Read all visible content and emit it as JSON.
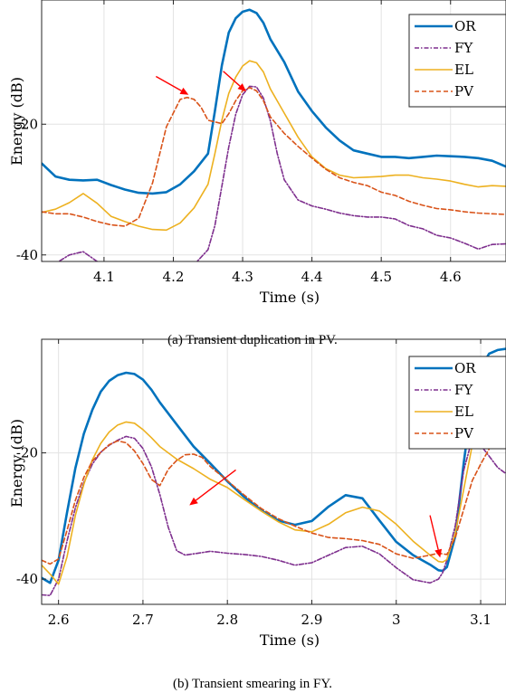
{
  "chart_data": [
    {
      "type": "line",
      "caption": "(a) Transient duplication in PV.",
      "xlabel": "Time (s)",
      "ylabel": "Energy (dB)",
      "xlim": [
        4.01,
        4.68
      ],
      "ylim": [
        -41,
        -1
      ],
      "xticks": [
        4.1,
        4.2,
        4.3,
        4.4,
        4.5,
        4.6
      ],
      "xtick_labels": [
        "4.1",
        "4.2",
        "4.3",
        "4.4",
        "4.5",
        "4.6"
      ],
      "yticks": [
        -40,
        -20
      ],
      "ytick_labels": [
        "-40",
        "-20"
      ],
      "grid": true,
      "legend_position": "top-right",
      "series": [
        {
          "name": "OR",
          "color": "#0072BD",
          "dash": "solid",
          "width": 2.6,
          "x": [
            4.01,
            4.03,
            4.05,
            4.07,
            4.09,
            4.11,
            4.13,
            4.15,
            4.17,
            4.19,
            4.21,
            4.23,
            4.25,
            4.26,
            4.27,
            4.28,
            4.29,
            4.3,
            4.31,
            4.32,
            4.33,
            4.34,
            4.36,
            4.38,
            4.4,
            4.42,
            4.44,
            4.46,
            4.48,
            4.5,
            4.52,
            4.54,
            4.56,
            4.58,
            4.6,
            4.62,
            4.64,
            4.66,
            4.68
          ],
          "y": [
            -26,
            -28,
            -28.5,
            -28.6,
            -28.5,
            -29.3,
            -30,
            -30.5,
            -30.6,
            -30.4,
            -29.2,
            -27.2,
            -24.5,
            -18,
            -11,
            -6,
            -3.8,
            -2.8,
            -2.5,
            -3,
            -4.5,
            -7,
            -10.5,
            -15,
            -18,
            -20.5,
            -22.5,
            -24,
            -24.5,
            -25,
            -25,
            -25.2,
            -25,
            -24.8,
            -24.9,
            -25,
            -25.2,
            -25.6,
            -26.5
          ]
        },
        {
          "name": "FY",
          "color": "#7E2F8E",
          "dash": "5,2,1.5,2",
          "width": 1.6,
          "x": [
            4.01,
            4.03,
            4.05,
            4.07,
            4.09,
            4.11,
            4.13,
            4.15,
            4.17,
            4.19,
            4.21,
            4.23,
            4.25,
            4.26,
            4.27,
            4.28,
            4.29,
            4.3,
            4.31,
            4.32,
            4.33,
            4.34,
            4.35,
            4.36,
            4.38,
            4.4,
            4.42,
            4.44,
            4.46,
            4.48,
            4.5,
            4.52,
            4.54,
            4.56,
            4.58,
            4.6,
            4.62,
            4.64,
            4.66,
            4.68
          ],
          "y": [
            -41,
            -41.3,
            -40,
            -39.5,
            -41,
            -42,
            -42.5,
            -43,
            -43,
            -43,
            -42.6,
            -41.5,
            -39.2,
            -35.5,
            -29.5,
            -23.5,
            -18.5,
            -15.5,
            -14.2,
            -14.3,
            -16,
            -19.5,
            -24.5,
            -28.5,
            -31.6,
            -32.5,
            -33,
            -33.6,
            -34,
            -34.2,
            -34.2,
            -34.5,
            -35.5,
            -36,
            -37,
            -37.4,
            -38.2,
            -39.1,
            -38.4,
            -38.3
          ]
        },
        {
          "name": "EL",
          "color": "#EDB120",
          "dash": "solid",
          "width": 1.6,
          "x": [
            4.01,
            4.03,
            4.05,
            4.07,
            4.09,
            4.11,
            4.13,
            4.15,
            4.17,
            4.19,
            4.21,
            4.23,
            4.25,
            4.26,
            4.27,
            4.28,
            4.29,
            4.3,
            4.31,
            4.32,
            4.33,
            4.34,
            4.36,
            4.38,
            4.4,
            4.42,
            4.44,
            4.46,
            4.48,
            4.5,
            4.52,
            4.54,
            4.56,
            4.58,
            4.6,
            4.62,
            4.64,
            4.66,
            4.68
          ],
          "y": [
            -33.5,
            -33,
            -32,
            -30.6,
            -32.1,
            -34.1,
            -34.9,
            -35.6,
            -36.1,
            -36.2,
            -35.1,
            -32.8,
            -29.2,
            -24.5,
            -19.4,
            -15.3,
            -12.8,
            -11.1,
            -10.3,
            -10.6,
            -12,
            -14.6,
            -18.3,
            -22,
            -25,
            -26.8,
            -27.8,
            -28.2,
            -28.1,
            -28,
            -27.8,
            -27.8,
            -28.2,
            -28.4,
            -28.7,
            -29.2,
            -29.6,
            -29.4,
            -29.5
          ]
        },
        {
          "name": "PV",
          "color": "#D95319",
          "dash": "5,3",
          "width": 1.6,
          "x": [
            4.01,
            4.03,
            4.05,
            4.07,
            4.09,
            4.11,
            4.13,
            4.15,
            4.17,
            4.19,
            4.21,
            4.22,
            4.23,
            4.24,
            4.25,
            4.27,
            4.28,
            4.29,
            4.3,
            4.31,
            4.32,
            4.33,
            4.34,
            4.36,
            4.38,
            4.4,
            4.42,
            4.44,
            4.46,
            4.48,
            4.5,
            4.52,
            4.54,
            4.56,
            4.58,
            4.6,
            4.62,
            4.64,
            4.66,
            4.68
          ],
          "y": [
            -33.4,
            -33.7,
            -33.7,
            -34.2,
            -34.9,
            -35.4,
            -35.6,
            -34.4,
            -29,
            -20.4,
            -16.2,
            -15.9,
            -16.2,
            -17.4,
            -19.4,
            -19.9,
            -18.4,
            -16.4,
            -14.9,
            -14.4,
            -14.9,
            -16.4,
            -18.9,
            -21.4,
            -23.4,
            -25.2,
            -26.9,
            -28.2,
            -28.9,
            -29.4,
            -30.4,
            -30.9,
            -31.8,
            -32.4,
            -32.9,
            -33.1,
            -33.4,
            -33.6,
            -33.7,
            -33.8
          ]
        }
      ],
      "annotations": [
        {
          "type": "arrow",
          "color": "#FF0000",
          "from": [
            4.175,
            -12.7
          ],
          "to": [
            4.222,
            -15.5
          ]
        },
        {
          "type": "arrow",
          "color": "#FF0000",
          "from": [
            4.272,
            -11.9
          ],
          "to": [
            4.305,
            -15
          ]
        }
      ]
    },
    {
      "type": "line",
      "caption": "(b) Transient smearing in FY.",
      "xlabel": "Time (s)",
      "ylabel": "Energy (dB)",
      "xlim": [
        2.58,
        3.13
      ],
      "ylim": [
        -44,
        -2
      ],
      "xticks": [
        2.6,
        2.7,
        2.8,
        2.9,
        3.0,
        3.1
      ],
      "xtick_labels": [
        "2.6",
        "2.7",
        "2.8",
        "2.9",
        "3",
        "3.1"
      ],
      "yticks": [
        -40,
        -20
      ],
      "ytick_labels": [
        "-40",
        "-20"
      ],
      "grid": true,
      "legend_position": "top-right",
      "series": [
        {
          "name": "OR",
          "color": "#0072BD",
          "dash": "solid",
          "width": 2.6,
          "x": [
            2.58,
            2.59,
            2.6,
            2.61,
            2.62,
            2.63,
            2.64,
            2.65,
            2.66,
            2.67,
            2.68,
            2.69,
            2.7,
            2.71,
            2.72,
            2.74,
            2.76,
            2.78,
            2.8,
            2.82,
            2.84,
            2.86,
            2.88,
            2.9,
            2.92,
            2.94,
            2.96,
            2.98,
            3.0,
            3.02,
            3.04,
            3.05,
            3.055,
            3.06,
            3.07,
            3.08,
            3.09,
            3.1,
            3.11,
            3.12,
            3.13
          ],
          "y": [
            -39.8,
            -40.6,
            -37,
            -29.5,
            -22.4,
            -17,
            -13.2,
            -10.3,
            -8.6,
            -7.7,
            -7.3,
            -7.5,
            -8.4,
            -10,
            -12,
            -15.5,
            -19,
            -21.7,
            -24.5,
            -27,
            -29.1,
            -30.7,
            -31.4,
            -30.8,
            -28.5,
            -26.7,
            -27.2,
            -30.7,
            -34.1,
            -36.2,
            -37.7,
            -38.6,
            -38.7,
            -38.1,
            -33.2,
            -21.5,
            -11.5,
            -6.5,
            -4.3,
            -3.7,
            -3.5
          ]
        },
        {
          "name": "FY",
          "color": "#7E2F8E",
          "dash": "5,2,1.5,2",
          "width": 1.6,
          "x": [
            2.58,
            2.59,
            2.6,
            2.61,
            2.62,
            2.63,
            2.64,
            2.65,
            2.66,
            2.67,
            2.68,
            2.69,
            2.7,
            2.71,
            2.72,
            2.73,
            2.74,
            2.75,
            2.76,
            2.78,
            2.8,
            2.82,
            2.84,
            2.86,
            2.88,
            2.9,
            2.92,
            2.94,
            2.96,
            2.98,
            3.0,
            3.02,
            3.04,
            3.05,
            3.055,
            3.06,
            3.07,
            3.08,
            3.09,
            3.1,
            3.11,
            3.12,
            3.13
          ],
          "y": [
            -42.5,
            -42.6,
            -40,
            -34,
            -28.7,
            -24.7,
            -21.8,
            -19.9,
            -18.8,
            -18,
            -17.4,
            -17.7,
            -19.3,
            -22.2,
            -26.6,
            -31.8,
            -35.5,
            -36.2,
            -36,
            -35.6,
            -35.9,
            -36.1,
            -36.4,
            -37,
            -37.8,
            -37.4,
            -36.2,
            -35,
            -34.8,
            -36,
            -38.2,
            -40.1,
            -40.6,
            -40,
            -39,
            -37,
            -31.5,
            -22.7,
            -17.8,
            -18.8,
            -20.5,
            -22.3,
            -23.3
          ]
        },
        {
          "name": "EL",
          "color": "#EDB120",
          "dash": "solid",
          "width": 1.6,
          "x": [
            2.58,
            2.59,
            2.6,
            2.61,
            2.62,
            2.63,
            2.64,
            2.65,
            2.66,
            2.67,
            2.68,
            2.69,
            2.7,
            2.71,
            2.72,
            2.74,
            2.76,
            2.78,
            2.8,
            2.82,
            2.84,
            2.86,
            2.88,
            2.9,
            2.92,
            2.94,
            2.96,
            2.98,
            3.0,
            3.02,
            3.04,
            3.05,
            3.055,
            3.06,
            3.07,
            3.08,
            3.09,
            3.1,
            3.11,
            3.12,
            3.13
          ],
          "y": [
            -37.8,
            -39.2,
            -40.8,
            -36.5,
            -29.9,
            -25,
            -21.1,
            -18.5,
            -16.7,
            -15.6,
            -15.1,
            -15.3,
            -16.3,
            -17.6,
            -19,
            -21,
            -22.5,
            -24.2,
            -25.5,
            -27.4,
            -29.2,
            -30.9,
            -32.2,
            -32.5,
            -31.3,
            -29.5,
            -28.6,
            -29.2,
            -31.3,
            -34,
            -36.2,
            -37.2,
            -37.3,
            -36.9,
            -32.7,
            -25.7,
            -18.8,
            -15,
            -14.3,
            -14.1,
            -14.2
          ]
        },
        {
          "name": "PV",
          "color": "#D95319",
          "dash": "5,3",
          "width": 1.6,
          "x": [
            2.58,
            2.59,
            2.6,
            2.61,
            2.62,
            2.63,
            2.64,
            2.65,
            2.66,
            2.67,
            2.68,
            2.69,
            2.7,
            2.71,
            2.72,
            2.73,
            2.74,
            2.75,
            2.76,
            2.77,
            2.78,
            2.8,
            2.82,
            2.84,
            2.86,
            2.88,
            2.9,
            2.92,
            2.94,
            2.96,
            2.98,
            3.0,
            3.02,
            3.04,
            3.05,
            3.06,
            3.07,
            3.08,
            3.09,
            3.1,
            3.11,
            3.12,
            3.13
          ],
          "y": [
            -37,
            -37.6,
            -36.8,
            -32.3,
            -27.5,
            -23.9,
            -21.3,
            -19.9,
            -18.7,
            -18.1,
            -18.4,
            -19.7,
            -21.7,
            -24.2,
            -25.2,
            -22.6,
            -21.2,
            -20.3,
            -20.2,
            -20.7,
            -22.2,
            -24.4,
            -26.7,
            -28.8,
            -30.4,
            -31.6,
            -32.7,
            -33.4,
            -33.6,
            -33.9,
            -34.5,
            -36,
            -36.7,
            -36.2,
            -35.9,
            -36.1,
            -33.4,
            -28.9,
            -24.4,
            -21.8,
            -19.4,
            -17.5,
            -16.9
          ]
        }
      ],
      "annotations": [
        {
          "type": "arrow",
          "color": "#FF0000",
          "from": [
            2.81,
            -22.7
          ],
          "to": [
            2.755,
            -28.3
          ]
        },
        {
          "type": "arrow",
          "color": "#FF0000",
          "from": [
            3.04,
            -29.9
          ],
          "to": [
            3.052,
            -36.6
          ]
        }
      ]
    }
  ]
}
